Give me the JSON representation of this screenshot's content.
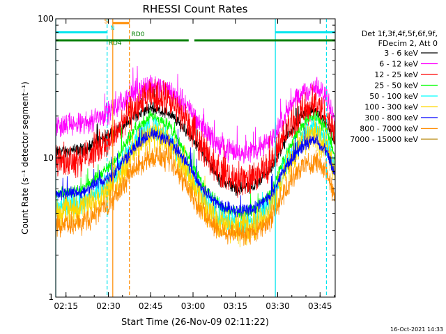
{
  "chart_data": {
    "type": "line",
    "title": "RHESSI Count Rates",
    "xlabel": "Start Time (26-Nov-09 02:11:22)",
    "ylabel": "Count Rate (s⁻¹ detector segment⁻¹)",
    "x_unit": "minutes after 02:11:22",
    "x_range": [
      0,
      99
    ],
    "ylim": [
      1,
      100
    ],
    "y_scale": "log",
    "x_ticks": [
      "02:15",
      "02:30",
      "02:45",
      "03:00",
      "03:15",
      "03:30",
      "03:45"
    ],
    "y_ticks": [
      "1",
      "10",
      "100"
    ],
    "legend_header": [
      "Det 1f,3f,4f,5f,6f,9f,",
      "FDecim 2, Att 0"
    ],
    "legend_position": "right",
    "series": [
      {
        "name": "3 - 6 keV",
        "color": "#000000",
        "values": [
          [
            0,
            11
          ],
          [
            10,
            11.5
          ],
          [
            20,
            15
          ],
          [
            28,
            20
          ],
          [
            34,
            23
          ],
          [
            40,
            21
          ],
          [
            46,
            16
          ],
          [
            52,
            11
          ],
          [
            58,
            7
          ],
          [
            64,
            6
          ],
          [
            70,
            6.2
          ],
          [
            76,
            8
          ],
          [
            82,
            14
          ],
          [
            88,
            21
          ],
          [
            92,
            22
          ],
          [
            96,
            18
          ],
          [
            99,
            13
          ]
        ]
      },
      {
        "name": "6 - 12 keV",
        "color": "#ff00ff",
        "values": [
          [
            0,
            17
          ],
          [
            10,
            17.5
          ],
          [
            20,
            22
          ],
          [
            28,
            30
          ],
          [
            34,
            34
          ],
          [
            40,
            31
          ],
          [
            46,
            24
          ],
          [
            52,
            17
          ],
          [
            58,
            12
          ],
          [
            64,
            11
          ],
          [
            70,
            11.2
          ],
          [
            76,
            13
          ],
          [
            82,
            22
          ],
          [
            88,
            30
          ],
          [
            92,
            32
          ],
          [
            96,
            27
          ],
          [
            99,
            20
          ]
        ]
      },
      {
        "name": "12 - 25 keV",
        "color": "#ff0000",
        "values": [
          [
            0,
            9.5
          ],
          [
            10,
            10
          ],
          [
            20,
            14
          ],
          [
            28,
            23
          ],
          [
            34,
            28
          ],
          [
            40,
            26
          ],
          [
            46,
            19
          ],
          [
            52,
            12
          ],
          [
            58,
            8
          ],
          [
            64,
            7
          ],
          [
            70,
            7.2
          ],
          [
            76,
            9
          ],
          [
            82,
            16
          ],
          [
            88,
            22
          ],
          [
            92,
            24
          ],
          [
            96,
            20
          ],
          [
            99,
            14
          ]
        ]
      },
      {
        "name": "25 - 50 keV",
        "color": "#00ff00",
        "values": [
          [
            0,
            5.5
          ],
          [
            10,
            6
          ],
          [
            20,
            9
          ],
          [
            28,
            16
          ],
          [
            34,
            20
          ],
          [
            40,
            17
          ],
          [
            46,
            11
          ],
          [
            52,
            6.5
          ],
          [
            58,
            4.5
          ],
          [
            64,
            4
          ],
          [
            70,
            4.1
          ],
          [
            76,
            5.5
          ],
          [
            82,
            11
          ],
          [
            88,
            18
          ],
          [
            92,
            20
          ],
          [
            96,
            16
          ],
          [
            99,
            10
          ]
        ]
      },
      {
        "name": "50 - 100 keV",
        "color": "#00ffff",
        "values": [
          [
            0,
            4.5
          ],
          [
            10,
            4.8
          ],
          [
            20,
            7
          ],
          [
            28,
            13
          ],
          [
            34,
            17
          ],
          [
            40,
            14
          ],
          [
            46,
            9
          ],
          [
            52,
            5.3
          ],
          [
            58,
            3.7
          ],
          [
            64,
            3.4
          ],
          [
            70,
            3.5
          ],
          [
            76,
            4.7
          ],
          [
            82,
            9.5
          ],
          [
            88,
            15
          ],
          [
            92,
            17
          ],
          [
            96,
            13
          ],
          [
            99,
            8
          ]
        ]
      },
      {
        "name": "100 - 300 keV",
        "color": "#ffd700",
        "values": [
          [
            0,
            4.2
          ],
          [
            10,
            4.4
          ],
          [
            20,
            6.3
          ],
          [
            28,
            11.5
          ],
          [
            34,
            15
          ],
          [
            40,
            12.5
          ],
          [
            46,
            8
          ],
          [
            52,
            4.8
          ],
          [
            58,
            3.4
          ],
          [
            64,
            3.1
          ],
          [
            70,
            3.2
          ],
          [
            76,
            4.3
          ],
          [
            82,
            8.6
          ],
          [
            88,
            13.5
          ],
          [
            92,
            15
          ],
          [
            96,
            12
          ],
          [
            99,
            7.2
          ]
        ]
      },
      {
        "name": "300 - 800 keV",
        "color": "#0000ff",
        "values": [
          [
            0,
            5.5
          ],
          [
            10,
            5.7
          ],
          [
            20,
            7.5
          ],
          [
            28,
            12
          ],
          [
            34,
            15
          ],
          [
            40,
            13.5
          ],
          [
            46,
            9.5
          ],
          [
            52,
            6
          ],
          [
            58,
            4.6
          ],
          [
            64,
            4.2
          ],
          [
            70,
            4.3
          ],
          [
            76,
            5.3
          ],
          [
            82,
            9
          ],
          [
            88,
            12.5
          ],
          [
            92,
            13.5
          ],
          [
            96,
            11
          ],
          [
            99,
            7.5
          ]
        ]
      },
      {
        "name": "800 - 7000 keV",
        "color": "#ff8c00",
        "values": [
          [
            0,
            3.2
          ],
          [
            10,
            3.4
          ],
          [
            20,
            5
          ],
          [
            28,
            8.5
          ],
          [
            34,
            10.5
          ],
          [
            40,
            9.5
          ],
          [
            46,
            6.5
          ],
          [
            52,
            4
          ],
          [
            58,
            3
          ],
          [
            64,
            2.8
          ],
          [
            70,
            2.9
          ],
          [
            76,
            3.6
          ],
          [
            82,
            6.3
          ],
          [
            88,
            9
          ],
          [
            92,
            9.5
          ],
          [
            96,
            8
          ],
          [
            99,
            5
          ]
        ]
      },
      {
        "name": "7000 - 15000 keV",
        "color": "#b8860b",
        "values": []
      }
    ],
    "annotations": [
      {
        "type": "vline",
        "x": 0,
        "color": "#00e5ee",
        "style": "solid"
      },
      {
        "type": "vline",
        "x": 18.2,
        "color": "#00e5ee",
        "style": "dashed"
      },
      {
        "type": "vline",
        "x": 20.2,
        "color": "#ff8c00",
        "style": "solid"
      },
      {
        "type": "vline",
        "x": 26.1,
        "color": "#ff8c00",
        "style": "dashed"
      },
      {
        "type": "vline",
        "x": 77.8,
        "color": "#00e5ee",
        "style": "solid"
      },
      {
        "type": "vline",
        "x": 95.9,
        "color": "#00e5ee",
        "style": "dashed"
      },
      {
        "type": "hline",
        "x0": -4,
        "x1": 18.2,
        "y": 80,
        "color": "#00e5ee"
      },
      {
        "type": "hline",
        "x0": 77.8,
        "x1": 99.5,
        "y": 80,
        "color": "#00e5ee"
      },
      {
        "type": "hline",
        "x0": 20.2,
        "x1": 26.1,
        "y": 93,
        "color": "#ff8c00"
      },
      {
        "type": "hline",
        "x0": -4,
        "x1": 47.1,
        "y": 70,
        "color": "#008000"
      },
      {
        "type": "hline",
        "x0": 49.1,
        "x1": 99.5,
        "y": 70,
        "color": "#008000"
      }
    ],
    "bar_labels": [
      {
        "text": "S",
        "x": 17.2,
        "y": 93,
        "color": "#ff8c00"
      },
      {
        "text": "N",
        "x": 19.3,
        "y": 83,
        "color": "#00e5ee"
      },
      {
        "text": "RD0",
        "x": 26.8,
        "y": 75,
        "color": "#008000"
      },
      {
        "text": "RD4",
        "x": 18.7,
        "y": 65,
        "color": "#008000"
      }
    ],
    "grid": false
  },
  "footer": {
    "timestamp": "16-Oct-2021 14:33"
  }
}
